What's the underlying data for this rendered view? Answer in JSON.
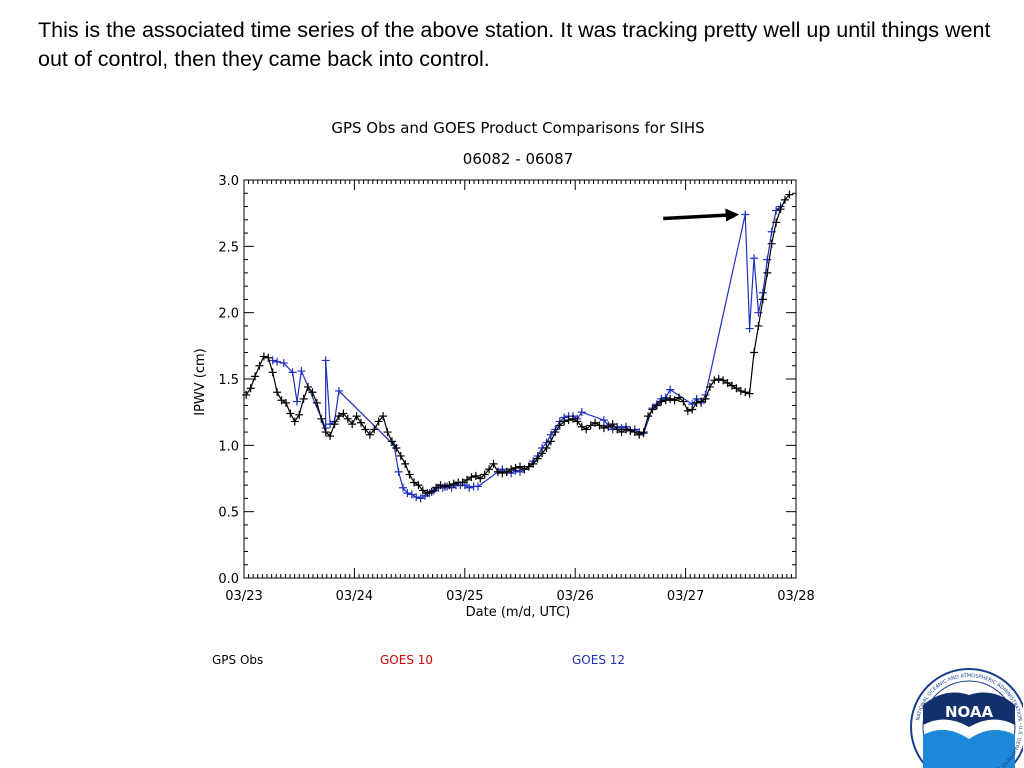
{
  "caption": "This is the associated time series of the above station.  It was tracking pretty well up until things went out of control, then they came back into control.",
  "logo_text": "NOAA",
  "logo_ring_text": "NATIONAL OCEANIC AND ATMOSPHERIC ADMINISTRATION · U.S. DEPARTMENT OF COMMERCE",
  "colors": {
    "gps_obs": "#000000",
    "goes10": "#d40000",
    "goes12": "#1f2fbf",
    "arrow": "#000000"
  },
  "chart_data": {
    "type": "line",
    "title": "GPS Obs and GOES Product Comparisons for SIHS",
    "subtitle": "06082 - 06087",
    "xlabel": "Date (m/d, UTC)",
    "ylabel": "IPWV (cm)",
    "xlim": [
      0,
      5
    ],
    "ylim": [
      0,
      3.0
    ],
    "x_ticks": [
      0,
      1,
      2,
      3,
      4,
      5
    ],
    "x_tick_labels": [
      "03/23",
      "03/24",
      "03/25",
      "03/26",
      "03/27",
      "03/28"
    ],
    "y_ticks": [
      0,
      0.5,
      1.0,
      1.5,
      2.0,
      2.5,
      3.0
    ],
    "y_tick_labels": [
      "0.0",
      "0.5",
      "1.0",
      "1.5",
      "2.0",
      "2.5",
      "3.0"
    ],
    "marker": "+",
    "legend": [
      {
        "label": "GPS Obs",
        "color": "#000000"
      },
      {
        "label": "GOES 10",
        "color": "#d40000"
      },
      {
        "label": "GOES 12",
        "color": "#1f2fbf"
      }
    ],
    "annotation": {
      "type": "arrow",
      "points_to": {
        "x": 4.54,
        "y": 2.74
      }
    },
    "series": [
      {
        "name": "GPS Obs",
        "color": "#000000",
        "points": [
          [
            0.02,
            1.38
          ],
          [
            0.06,
            1.43
          ],
          [
            0.1,
            1.52
          ],
          [
            0.14,
            1.6
          ],
          [
            0.18,
            1.67
          ],
          [
            0.22,
            1.66
          ],
          [
            0.26,
            1.55
          ],
          [
            0.3,
            1.4
          ],
          [
            0.34,
            1.34
          ],
          [
            0.38,
            1.32
          ],
          [
            0.42,
            1.24
          ],
          [
            0.46,
            1.18
          ],
          [
            0.5,
            1.23
          ],
          [
            0.54,
            1.35
          ],
          [
            0.58,
            1.44
          ],
          [
            0.62,
            1.4
          ],
          [
            0.66,
            1.32
          ],
          [
            0.7,
            1.2
          ],
          [
            0.74,
            1.1
          ],
          [
            0.78,
            1.07
          ],
          [
            0.82,
            1.16
          ],
          [
            0.86,
            1.22
          ],
          [
            0.9,
            1.24
          ],
          [
            0.94,
            1.2
          ],
          [
            0.98,
            1.16
          ],
          [
            1.02,
            1.22
          ],
          [
            1.06,
            1.17
          ],
          [
            1.1,
            1.12
          ],
          [
            1.14,
            1.08
          ],
          [
            1.18,
            1.12
          ],
          [
            1.22,
            1.18
          ],
          [
            1.26,
            1.22
          ],
          [
            1.3,
            1.1
          ],
          [
            1.34,
            1.03
          ],
          [
            1.38,
            0.98
          ],
          [
            1.42,
            0.92
          ],
          [
            1.46,
            0.86
          ],
          [
            1.5,
            0.78
          ],
          [
            1.54,
            0.72
          ],
          [
            1.58,
            0.7
          ],
          [
            1.62,
            0.66
          ],
          [
            1.66,
            0.64
          ],
          [
            1.7,
            0.65
          ],
          [
            1.74,
            0.68
          ],
          [
            1.78,
            0.7
          ],
          [
            1.82,
            0.69
          ],
          [
            1.86,
            0.7
          ],
          [
            1.9,
            0.71
          ],
          [
            1.94,
            0.72
          ],
          [
            1.98,
            0.72
          ],
          [
            2.02,
            0.74
          ],
          [
            2.06,
            0.76
          ],
          [
            2.1,
            0.77
          ],
          [
            2.14,
            0.75
          ],
          [
            2.18,
            0.78
          ],
          [
            2.22,
            0.82
          ],
          [
            2.26,
            0.86
          ],
          [
            2.3,
            0.8
          ],
          [
            2.34,
            0.79
          ],
          [
            2.38,
            0.8
          ],
          [
            2.42,
            0.82
          ],
          [
            2.46,
            0.83
          ],
          [
            2.5,
            0.84
          ],
          [
            2.54,
            0.82
          ],
          [
            2.58,
            0.84
          ],
          [
            2.62,
            0.86
          ],
          [
            2.66,
            0.9
          ],
          [
            2.7,
            0.94
          ],
          [
            2.74,
            0.98
          ],
          [
            2.78,
            1.03
          ],
          [
            2.82,
            1.1
          ],
          [
            2.86,
            1.15
          ],
          [
            2.9,
            1.18
          ],
          [
            2.94,
            1.19
          ],
          [
            2.98,
            1.2
          ],
          [
            3.02,
            1.18
          ],
          [
            3.06,
            1.14
          ],
          [
            3.1,
            1.12
          ],
          [
            3.14,
            1.15
          ],
          [
            3.18,
            1.17
          ],
          [
            3.22,
            1.15
          ],
          [
            3.26,
            1.13
          ],
          [
            3.3,
            1.14
          ],
          [
            3.34,
            1.16
          ],
          [
            3.38,
            1.12
          ],
          [
            3.42,
            1.1
          ],
          [
            3.46,
            1.12
          ],
          [
            3.5,
            1.11
          ],
          [
            3.54,
            1.1
          ],
          [
            3.58,
            1.08
          ],
          [
            3.62,
            1.1
          ],
          [
            3.66,
            1.22
          ],
          [
            3.7,
            1.27
          ],
          [
            3.74,
            1.3
          ],
          [
            3.78,
            1.33
          ],
          [
            3.82,
            1.34
          ],
          [
            3.86,
            1.35
          ],
          [
            3.9,
            1.34
          ],
          [
            3.94,
            1.36
          ],
          [
            3.98,
            1.33
          ],
          [
            4.02,
            1.26
          ],
          [
            4.06,
            1.27
          ],
          [
            4.1,
            1.32
          ],
          [
            4.14,
            1.33
          ],
          [
            4.18,
            1.35
          ],
          [
            4.22,
            1.44
          ],
          [
            4.26,
            1.49
          ],
          [
            4.3,
            1.5
          ],
          [
            4.34,
            1.49
          ],
          [
            4.38,
            1.47
          ],
          [
            4.42,
            1.45
          ],
          [
            4.46,
            1.43
          ],
          [
            4.5,
            1.41
          ],
          [
            4.54,
            1.4
          ],
          [
            4.58,
            1.39
          ],
          [
            4.62,
            1.7
          ],
          [
            4.66,
            1.9
          ],
          [
            4.7,
            2.1
          ],
          [
            4.74,
            2.3
          ],
          [
            4.78,
            2.52
          ],
          [
            4.82,
            2.68
          ],
          [
            4.86,
            2.78
          ],
          [
            4.9,
            2.85
          ],
          [
            4.94,
            2.89
          ]
        ]
      },
      {
        "name": "GOES 10",
        "color": "#d40000",
        "points": []
      },
      {
        "name": "GOES 12",
        "color": "#1f2fbf",
        "points": [
          [
            0.26,
            1.64
          ],
          [
            0.3,
            1.63
          ],
          [
            0.36,
            1.62
          ],
          [
            0.44,
            1.55
          ],
          [
            0.48,
            1.33
          ],
          [
            0.52,
            1.56
          ],
          [
            0.74,
            1.13
          ],
          [
            0.74,
            1.64
          ],
          [
            0.78,
            1.16
          ],
          [
            0.82,
            1.18
          ],
          [
            0.86,
            1.41
          ],
          [
            1.36,
            1.0
          ],
          [
            1.4,
            0.8
          ],
          [
            1.44,
            0.68
          ],
          [
            1.48,
            0.64
          ],
          [
            1.52,
            0.63
          ],
          [
            1.56,
            0.61
          ],
          [
            1.6,
            0.6
          ],
          [
            1.64,
            0.62
          ],
          [
            1.68,
            0.64
          ],
          [
            1.72,
            0.66
          ],
          [
            1.76,
            0.68
          ],
          [
            1.8,
            0.68
          ],
          [
            1.84,
            0.69
          ],
          [
            1.88,
            0.68
          ],
          [
            1.92,
            0.7
          ],
          [
            1.96,
            0.7
          ],
          [
            2.0,
            0.7
          ],
          [
            2.04,
            0.68
          ],
          [
            2.08,
            0.69
          ],
          [
            2.12,
            0.69
          ],
          [
            2.3,
            0.8
          ],
          [
            2.34,
            0.82
          ],
          [
            2.38,
            0.8
          ],
          [
            2.42,
            0.79
          ],
          [
            2.46,
            0.81
          ],
          [
            2.5,
            0.8
          ],
          [
            2.54,
            0.82
          ],
          [
            2.58,
            0.84
          ],
          [
            2.62,
            0.88
          ],
          [
            2.66,
            0.92
          ],
          [
            2.7,
            0.98
          ],
          [
            2.74,
            1.02
          ],
          [
            2.78,
            1.08
          ],
          [
            2.82,
            1.12
          ],
          [
            2.86,
            1.18
          ],
          [
            2.9,
            1.21
          ],
          [
            2.94,
            1.22
          ],
          [
            2.98,
            1.22
          ],
          [
            3.02,
            1.2
          ],
          [
            3.06,
            1.25
          ],
          [
            3.26,
            1.19
          ],
          [
            3.3,
            1.15
          ],
          [
            3.34,
            1.12
          ],
          [
            3.38,
            1.14
          ],
          [
            3.42,
            1.13
          ],
          [
            3.46,
            1.14
          ],
          [
            3.5,
            1.11
          ],
          [
            3.54,
            1.12
          ],
          [
            3.58,
            1.1
          ],
          [
            3.62,
            1.09
          ],
          [
            3.7,
            1.28
          ],
          [
            3.74,
            1.31
          ],
          [
            3.78,
            1.35
          ],
          [
            3.82,
            1.36
          ],
          [
            3.86,
            1.42
          ],
          [
            4.06,
            1.31
          ],
          [
            4.1,
            1.35
          ],
          [
            4.14,
            1.32
          ],
          [
            4.18,
            1.38
          ],
          [
            4.54,
            2.74
          ],
          [
            4.58,
            1.88
          ],
          [
            4.62,
            2.41
          ],
          [
            4.66,
            2.0
          ],
          [
            4.7,
            2.15
          ],
          [
            4.74,
            2.4
          ],
          [
            4.78,
            2.61
          ],
          [
            4.82,
            2.77
          ],
          [
            4.86,
            2.8
          ]
        ]
      }
    ]
  }
}
